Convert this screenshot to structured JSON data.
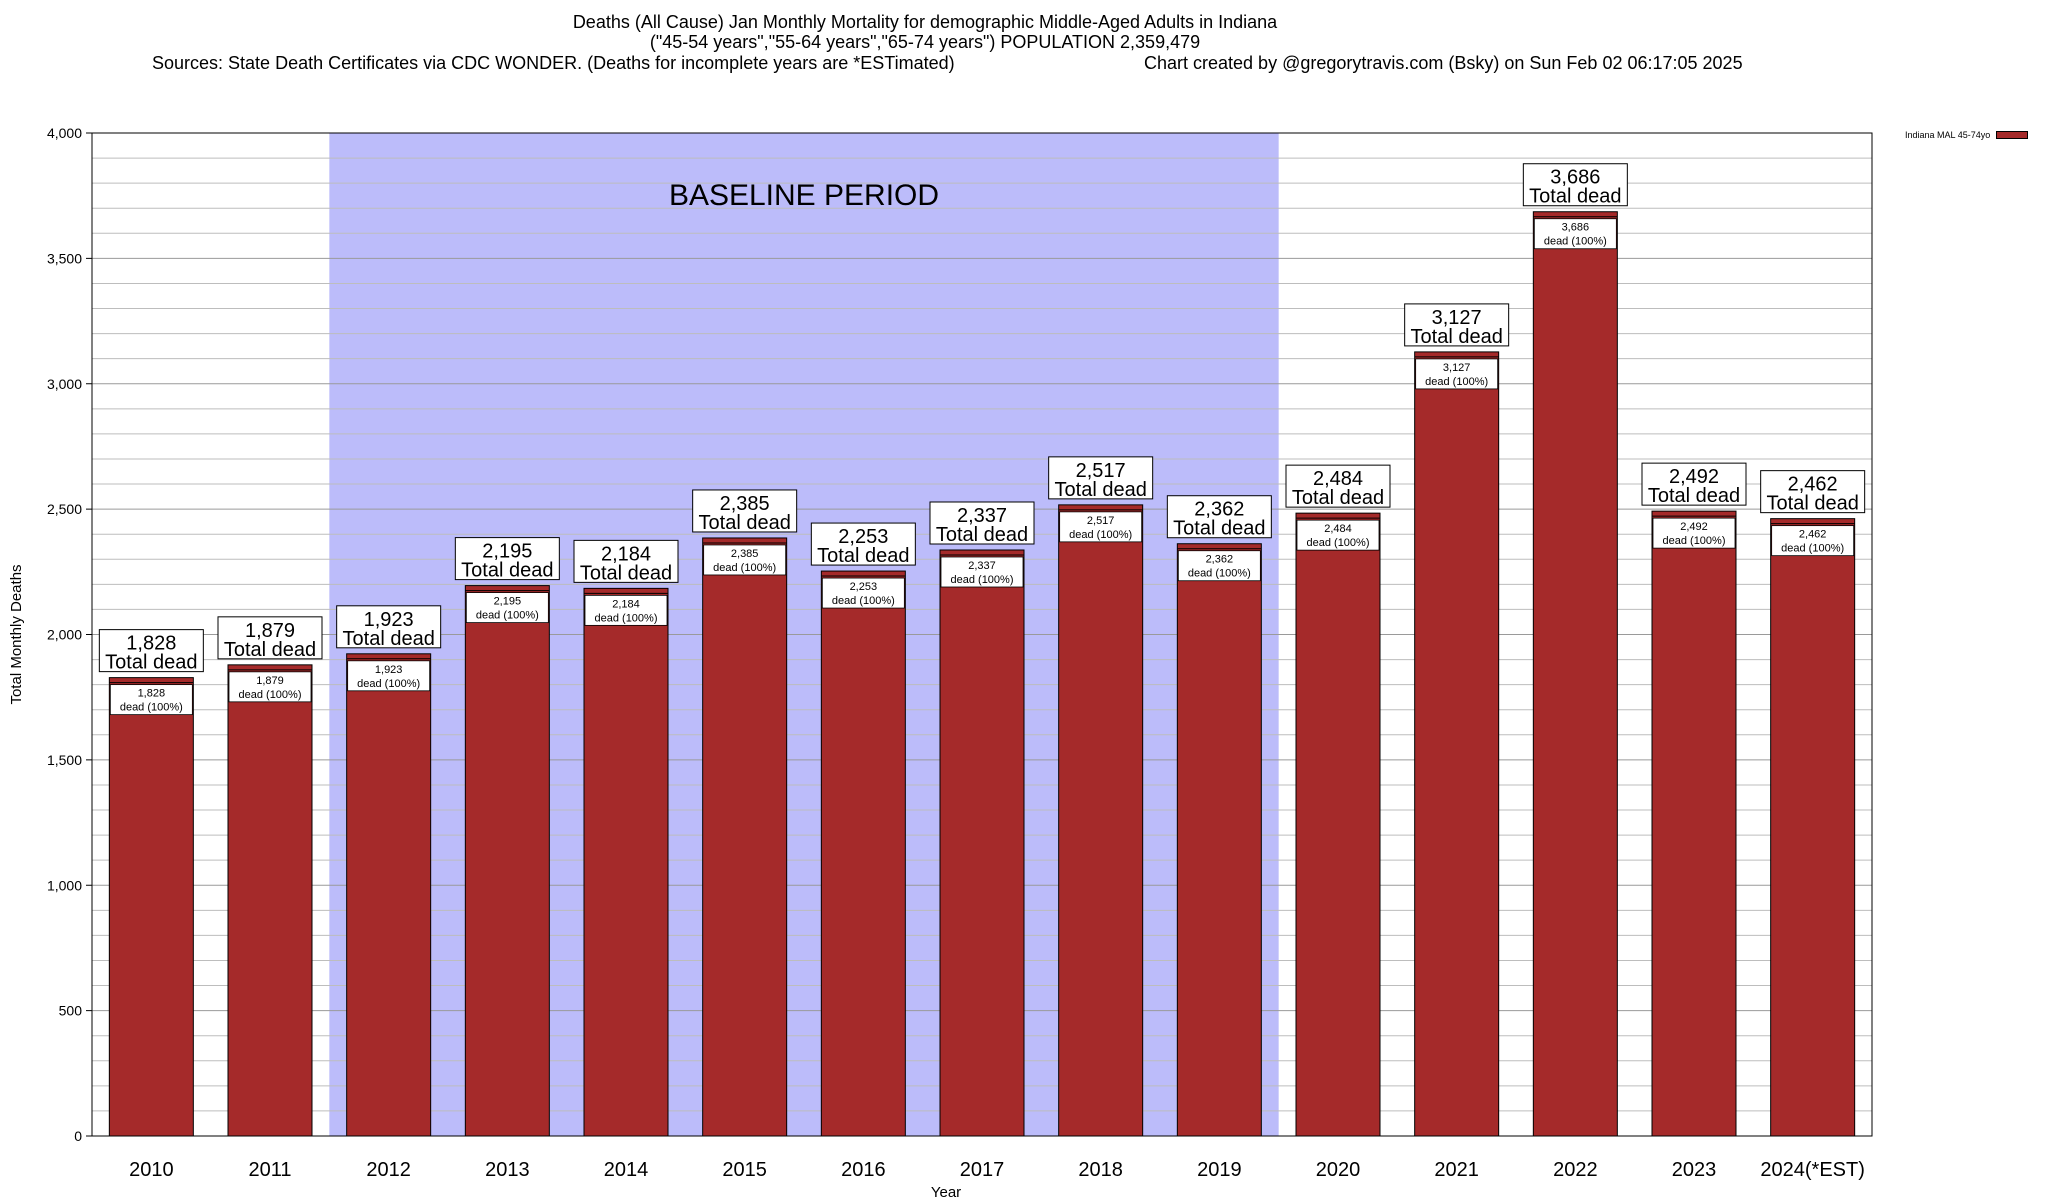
{
  "title_lines": [
    "Deaths (All Cause) Jan Monthly Mortality for demographic Middle-Aged Adults in Indiana",
    "(\"45-54 years\",\"55-64 years\",\"65-74 years\") POPULATION 2,359,479",
    "Sources: State Death Certificates via CDC WONDER. (Deaths for incomplete years are *ESTimated)",
    "Chart created by @gregorytravis.com (Bsky) on Sun Feb 02 06:17:05 2025"
  ],
  "colors": {
    "bar": "#a52a2a",
    "baseline_shade": "#bcbcfa",
    "grid": "#bdbdbd"
  },
  "chart_data": {
    "type": "bar",
    "categories": [
      "2010",
      "2011",
      "2012",
      "2013",
      "2014",
      "2015",
      "2016",
      "2017",
      "2018",
      "2019",
      "2020",
      "2021",
      "2022",
      "2023",
      "2024(*EST)"
    ],
    "series": [
      {
        "name": "Indiana MAL 45-74yo",
        "values": [
          1828,
          1879,
          1923,
          2195,
          2184,
          2385,
          2253,
          2337,
          2517,
          2362,
          2484,
          3127,
          3686,
          2492,
          2462
        ]
      }
    ],
    "top_labels": [
      "1,828",
      "1,879",
      "1,923",
      "2,195",
      "2,184",
      "2,385",
      "2,253",
      "2,337",
      "2,517",
      "2,362",
      "2,484",
      "3,127",
      "3,686",
      "2,492",
      "2,462"
    ],
    "top_label_suffix": "Total dead",
    "inner_label_suffix": "dead (100%)",
    "xlabel": "Year",
    "ylabel": "Total Monthly Deaths",
    "ylim": [
      0,
      4000
    ],
    "yticks": [
      0,
      500,
      1000,
      1500,
      2000,
      2500,
      3000,
      3500,
      4000
    ],
    "ytick_labels": [
      "0",
      "500",
      "1,000",
      "1,500",
      "2,000",
      "2,500",
      "3,000",
      "3,500",
      "4,000"
    ],
    "minor_grid_step": 100,
    "annotation": "BASELINE PERIOD",
    "baseline_period": [
      "2012",
      "2019"
    ],
    "grid": true,
    "legend_position": "top-right"
  }
}
